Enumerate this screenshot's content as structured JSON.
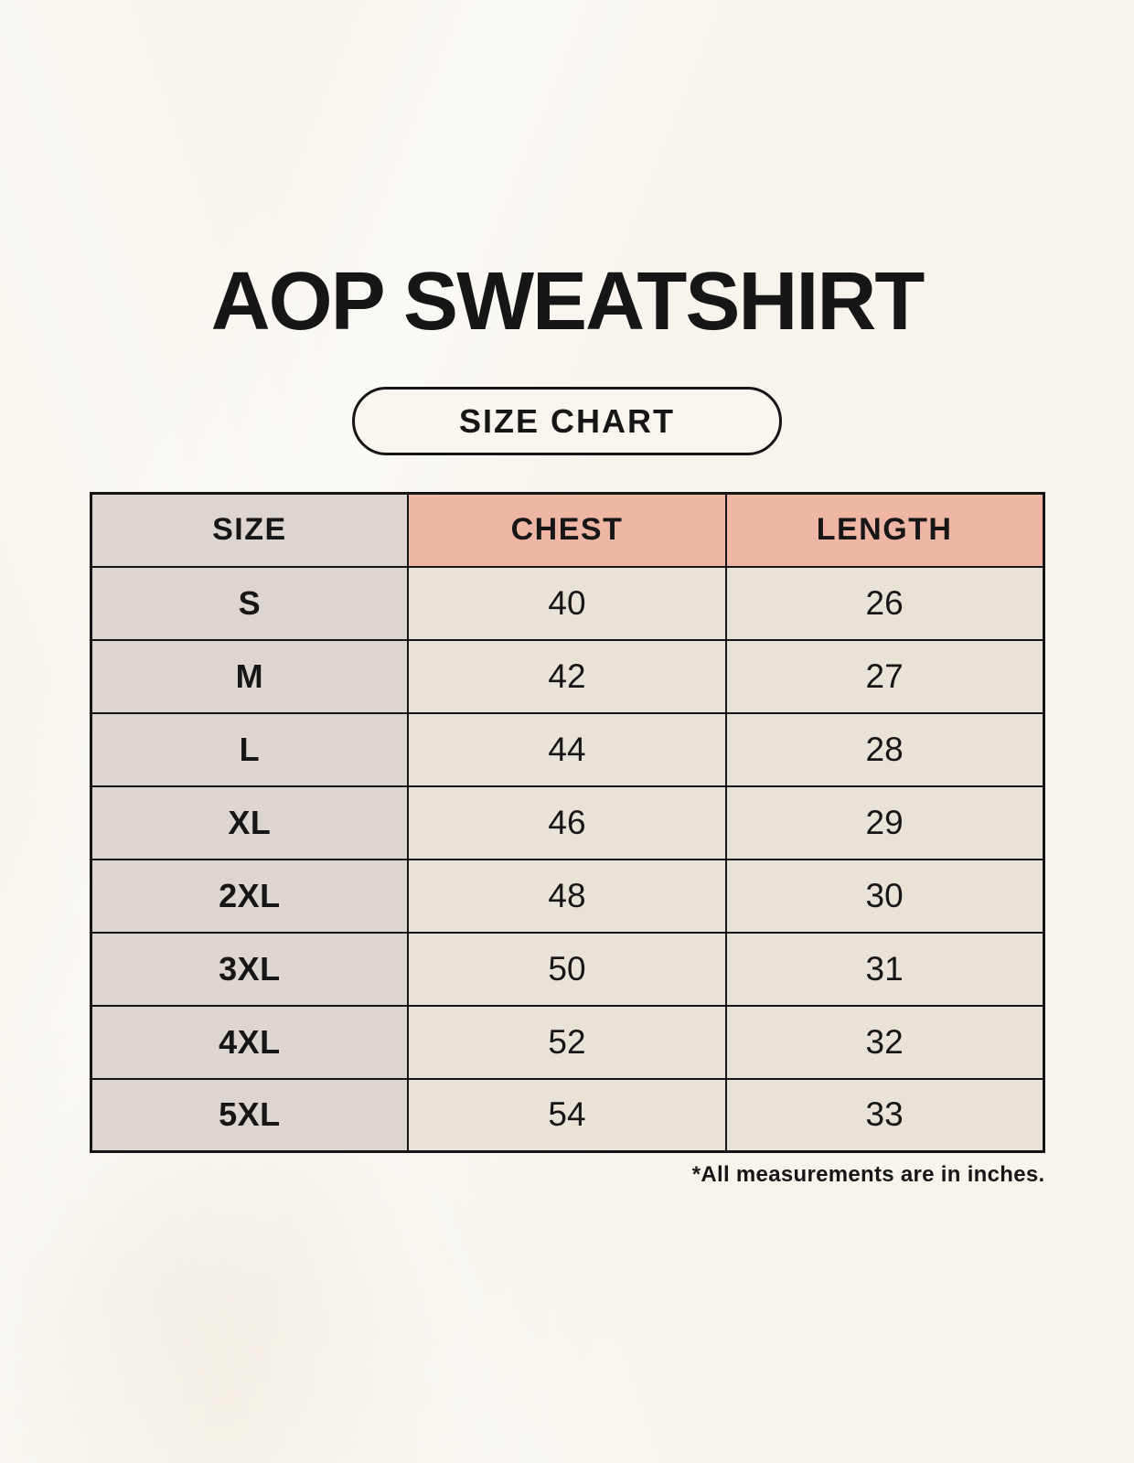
{
  "page": {
    "title": "AOP SWEATSHIRT",
    "badge_label": "SIZE CHART",
    "footnote": "*All measurements are in inches."
  },
  "table": {
    "headers": [
      "SIZE",
      "CHEST",
      "LENGTH"
    ],
    "rows": [
      {
        "size": "S",
        "chest": "40",
        "length": "26"
      },
      {
        "size": "M",
        "chest": "42",
        "length": "27"
      },
      {
        "size": "L",
        "chest": "44",
        "length": "28"
      },
      {
        "size": "XL",
        "chest": "46",
        "length": "29"
      },
      {
        "size": "2XL",
        "chest": "48",
        "length": "30"
      },
      {
        "size": "3XL",
        "chest": "50",
        "length": "31"
      },
      {
        "size": "4XL",
        "chest": "52",
        "length": "32"
      },
      {
        "size": "5XL",
        "chest": "54",
        "length": "33"
      }
    ]
  },
  "chart_data": {
    "type": "table",
    "title": "AOP SWEATSHIRT",
    "subtitle": "SIZE CHART",
    "columns": [
      "SIZE",
      "CHEST",
      "LENGTH"
    ],
    "rows": [
      [
        "S",
        40,
        26
      ],
      [
        "M",
        42,
        27
      ],
      [
        "L",
        44,
        28
      ],
      [
        "XL",
        46,
        29
      ],
      [
        "2XL",
        48,
        30
      ],
      [
        "3XL",
        50,
        31
      ],
      [
        "4XL",
        52,
        32
      ],
      [
        "5XL",
        54,
        33
      ]
    ],
    "units": "inches",
    "annotations": [
      "*All measurements are in inches."
    ]
  },
  "colors": {
    "page_bg": "#f8f4ec",
    "pill_bg": "#faf6ef",
    "header_pink": "#f0b6a5",
    "cell_gray": "#ddd6d0",
    "cell_cream": "#e9e3d7",
    "ink": "#161616"
  }
}
